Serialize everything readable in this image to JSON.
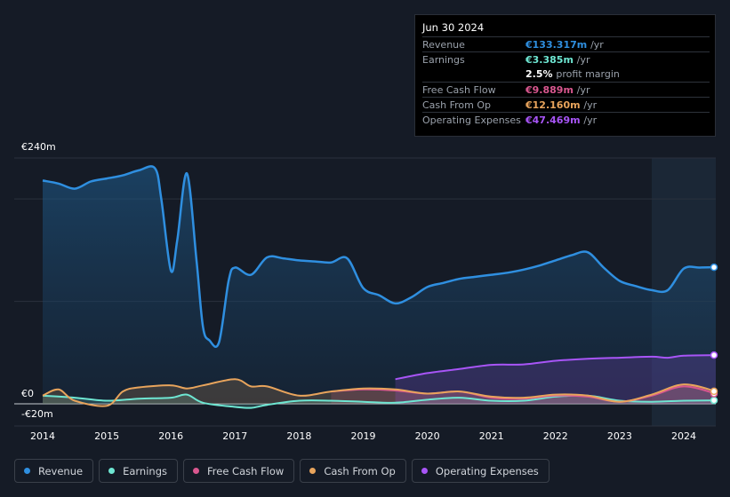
{
  "tooltip": {
    "date": "Jun 30 2024",
    "rows": [
      {
        "label": "Revenue",
        "value": "€133.317m",
        "unit": "/yr",
        "color": "#2f8fe0"
      },
      {
        "label": "Earnings",
        "value": "€3.385m",
        "unit": "/yr",
        "color": "#6ee6d2"
      },
      {
        "label": "",
        "value": "2.5%",
        "unit": "profit margin",
        "color": "#ffffff"
      },
      {
        "label": "Free Cash Flow",
        "value": "€9.889m",
        "unit": "/yr",
        "color": "#d9578f"
      },
      {
        "label": "Cash From Op",
        "value": "€12.160m",
        "unit": "/yr",
        "color": "#e8a45c"
      },
      {
        "label": "Operating Expenses",
        "value": "€47.469m",
        "unit": "/yr",
        "color": "#a855f7"
      }
    ]
  },
  "legend": [
    {
      "label": "Revenue",
      "color": "#2f8fe0"
    },
    {
      "label": "Earnings",
      "color": "#6ee6d2"
    },
    {
      "label": "Free Cash Flow",
      "color": "#d9578f"
    },
    {
      "label": "Cash From Op",
      "color": "#e8a45c"
    },
    {
      "label": "Operating Expenses",
      "color": "#a855f7"
    }
  ],
  "chart_data": {
    "type": "area",
    "title": "",
    "xlabel": "",
    "ylabel": "",
    "y_tick_labels": {
      "top": "€240m",
      "zero": "€0",
      "bottom": "-€20m"
    },
    "ylim": [
      -20,
      240
    ],
    "xlim": [
      2013.95,
      2024.5
    ],
    "x_ticks": [
      2014,
      2015,
      2016,
      2017,
      2018,
      2019,
      2020,
      2021,
      2022,
      2023,
      2024
    ],
    "x_tick_labels": [
      "2014",
      "2015",
      "2016",
      "2017",
      "2018",
      "2019",
      "2020",
      "2021",
      "2022",
      "2023",
      "2024"
    ],
    "gridlines": [
      0,
      100,
      200,
      240
    ],
    "highlight_from": 2023.5,
    "series": [
      {
        "name": "Revenue",
        "color": "#2f8fe0",
        "points": [
          [
            2014.0,
            218
          ],
          [
            2014.25,
            215
          ],
          [
            2014.5,
            210
          ],
          [
            2014.75,
            217
          ],
          [
            2015.0,
            220
          ],
          [
            2015.25,
            223
          ],
          [
            2015.5,
            228
          ],
          [
            2015.75,
            230
          ],
          [
            2015.85,
            200
          ],
          [
            2016.0,
            130
          ],
          [
            2016.1,
            160
          ],
          [
            2016.25,
            225
          ],
          [
            2016.4,
            140
          ],
          [
            2016.5,
            75
          ],
          [
            2016.6,
            62
          ],
          [
            2016.75,
            60
          ],
          [
            2016.9,
            120
          ],
          [
            2017.0,
            133
          ],
          [
            2017.25,
            126
          ],
          [
            2017.5,
            143
          ],
          [
            2017.75,
            142
          ],
          [
            2018.0,
            140
          ],
          [
            2018.25,
            139
          ],
          [
            2018.5,
            138
          ],
          [
            2018.75,
            142
          ],
          [
            2019.0,
            113
          ],
          [
            2019.25,
            106
          ],
          [
            2019.5,
            98
          ],
          [
            2019.75,
            104
          ],
          [
            2020.0,
            114
          ],
          [
            2020.25,
            118
          ],
          [
            2020.5,
            122
          ],
          [
            2020.75,
            124
          ],
          [
            2021.0,
            126
          ],
          [
            2021.25,
            128
          ],
          [
            2021.5,
            131
          ],
          [
            2021.75,
            135
          ],
          [
            2022.0,
            140
          ],
          [
            2022.25,
            145
          ],
          [
            2022.5,
            148
          ],
          [
            2022.75,
            133
          ],
          [
            2023.0,
            120
          ],
          [
            2023.25,
            115
          ],
          [
            2023.5,
            111
          ],
          [
            2023.75,
            111
          ],
          [
            2024.0,
            132
          ],
          [
            2024.25,
            133
          ],
          [
            2024.5,
            133.3
          ]
        ]
      },
      {
        "name": "Earnings",
        "color": "#6ee6d2",
        "points": [
          [
            2014.0,
            8
          ],
          [
            2014.5,
            6
          ],
          [
            2015.0,
            3
          ],
          [
            2015.5,
            5
          ],
          [
            2016.0,
            6
          ],
          [
            2016.25,
            9
          ],
          [
            2016.5,
            1
          ],
          [
            2017.0,
            -3
          ],
          [
            2017.25,
            -4
          ],
          [
            2017.5,
            -1
          ],
          [
            2018.0,
            3
          ],
          [
            2018.5,
            3
          ],
          [
            2019.0,
            2
          ],
          [
            2019.5,
            1
          ],
          [
            2020.0,
            4
          ],
          [
            2020.5,
            6
          ],
          [
            2021.0,
            3
          ],
          [
            2021.5,
            3
          ],
          [
            2022.0,
            7
          ],
          [
            2022.5,
            8
          ],
          [
            2023.0,
            3
          ],
          [
            2023.5,
            2
          ],
          [
            2024.0,
            3
          ],
          [
            2024.5,
            3.4
          ]
        ]
      },
      {
        "name": "Free Cash Flow",
        "color": "#d9578f",
        "points": [
          [
            2018.5,
            12
          ],
          [
            2019.0,
            14
          ],
          [
            2019.5,
            13
          ],
          [
            2020.0,
            10
          ],
          [
            2020.5,
            12
          ],
          [
            2021.0,
            6
          ],
          [
            2021.5,
            5
          ],
          [
            2022.0,
            8
          ],
          [
            2022.5,
            7
          ],
          [
            2023.0,
            2
          ],
          [
            2023.5,
            8
          ],
          [
            2024.0,
            17
          ],
          [
            2024.5,
            9.9
          ]
        ]
      },
      {
        "name": "Cash From Op",
        "color": "#e8a45c",
        "points": [
          [
            2014.0,
            8
          ],
          [
            2014.25,
            14
          ],
          [
            2014.5,
            3
          ],
          [
            2015.0,
            -2
          ],
          [
            2015.25,
            12
          ],
          [
            2015.5,
            16
          ],
          [
            2016.0,
            18
          ],
          [
            2016.25,
            15
          ],
          [
            2016.5,
            18
          ],
          [
            2017.0,
            24
          ],
          [
            2017.25,
            17
          ],
          [
            2017.5,
            17
          ],
          [
            2018.0,
            8
          ],
          [
            2018.5,
            12
          ],
          [
            2019.0,
            15
          ],
          [
            2019.5,
            14
          ],
          [
            2020.0,
            10
          ],
          [
            2020.5,
            12
          ],
          [
            2021.0,
            7
          ],
          [
            2021.5,
            6
          ],
          [
            2022.0,
            9
          ],
          [
            2022.5,
            8
          ],
          [
            2023.0,
            2
          ],
          [
            2023.5,
            9
          ],
          [
            2024.0,
            19
          ],
          [
            2024.5,
            12.2
          ]
        ]
      },
      {
        "name": "Operating Expenses",
        "color": "#a855f7",
        "points": [
          [
            2019.5,
            24
          ],
          [
            2020.0,
            30
          ],
          [
            2020.5,
            34
          ],
          [
            2021.0,
            38
          ],
          [
            2021.5,
            38.5
          ],
          [
            2022.0,
            42
          ],
          [
            2022.5,
            44
          ],
          [
            2023.0,
            45
          ],
          [
            2023.5,
            46
          ],
          [
            2023.75,
            45
          ],
          [
            2024.0,
            47
          ],
          [
            2024.5,
            47.5
          ]
        ]
      }
    ]
  }
}
